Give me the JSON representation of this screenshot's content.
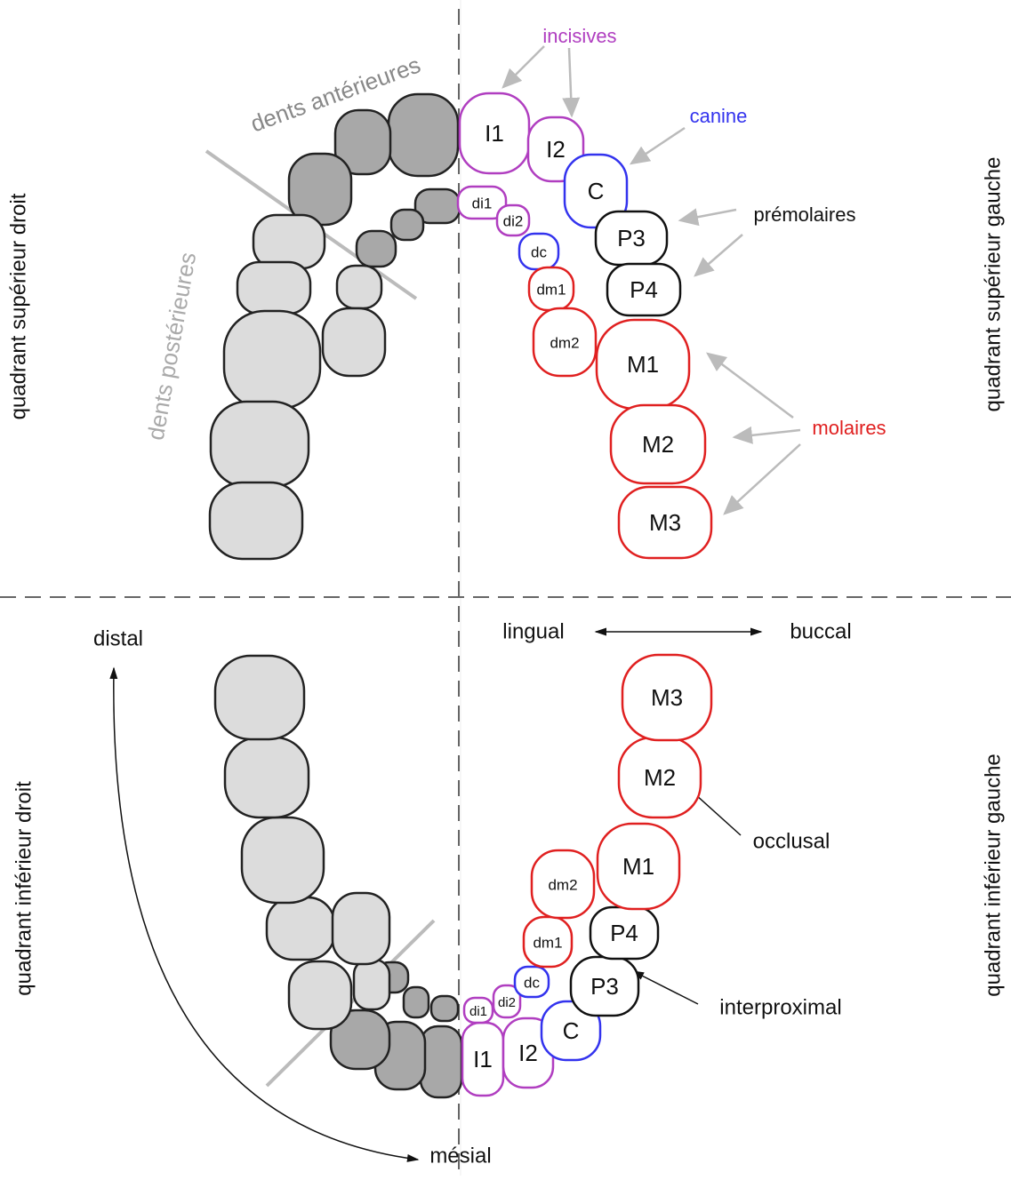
{
  "groups": {
    "incisors": "incisives",
    "canine": "canine",
    "premolars": "prémolaires",
    "molars": "molaires",
    "anterior": "dents antérieures",
    "posterior": "dents postérieures"
  },
  "quadrants": {
    "upper_right": "quadrant supérieur droit",
    "upper_left": "quadrant supérieur gauche",
    "lower_right": "quadrant inférieur droit",
    "lower_left": "quadrant inférieur gauche"
  },
  "directions": {
    "lingual": "lingual",
    "buccal": "buccal",
    "distal": "distal",
    "mesial": "mésial",
    "occlusal": "occlusal",
    "interproximal": "interproximal"
  },
  "upper_teeth": [
    "I1",
    "I2",
    "C",
    "P3",
    "P4",
    "M1",
    "M2",
    "M3",
    "di1",
    "di2",
    "dc",
    "dm1",
    "dm2"
  ],
  "lower_teeth": [
    "I1",
    "I2",
    "C",
    "P3",
    "P4",
    "M1",
    "M2",
    "M3",
    "di1",
    "di2",
    "dc",
    "dm1",
    "dm2"
  ]
}
